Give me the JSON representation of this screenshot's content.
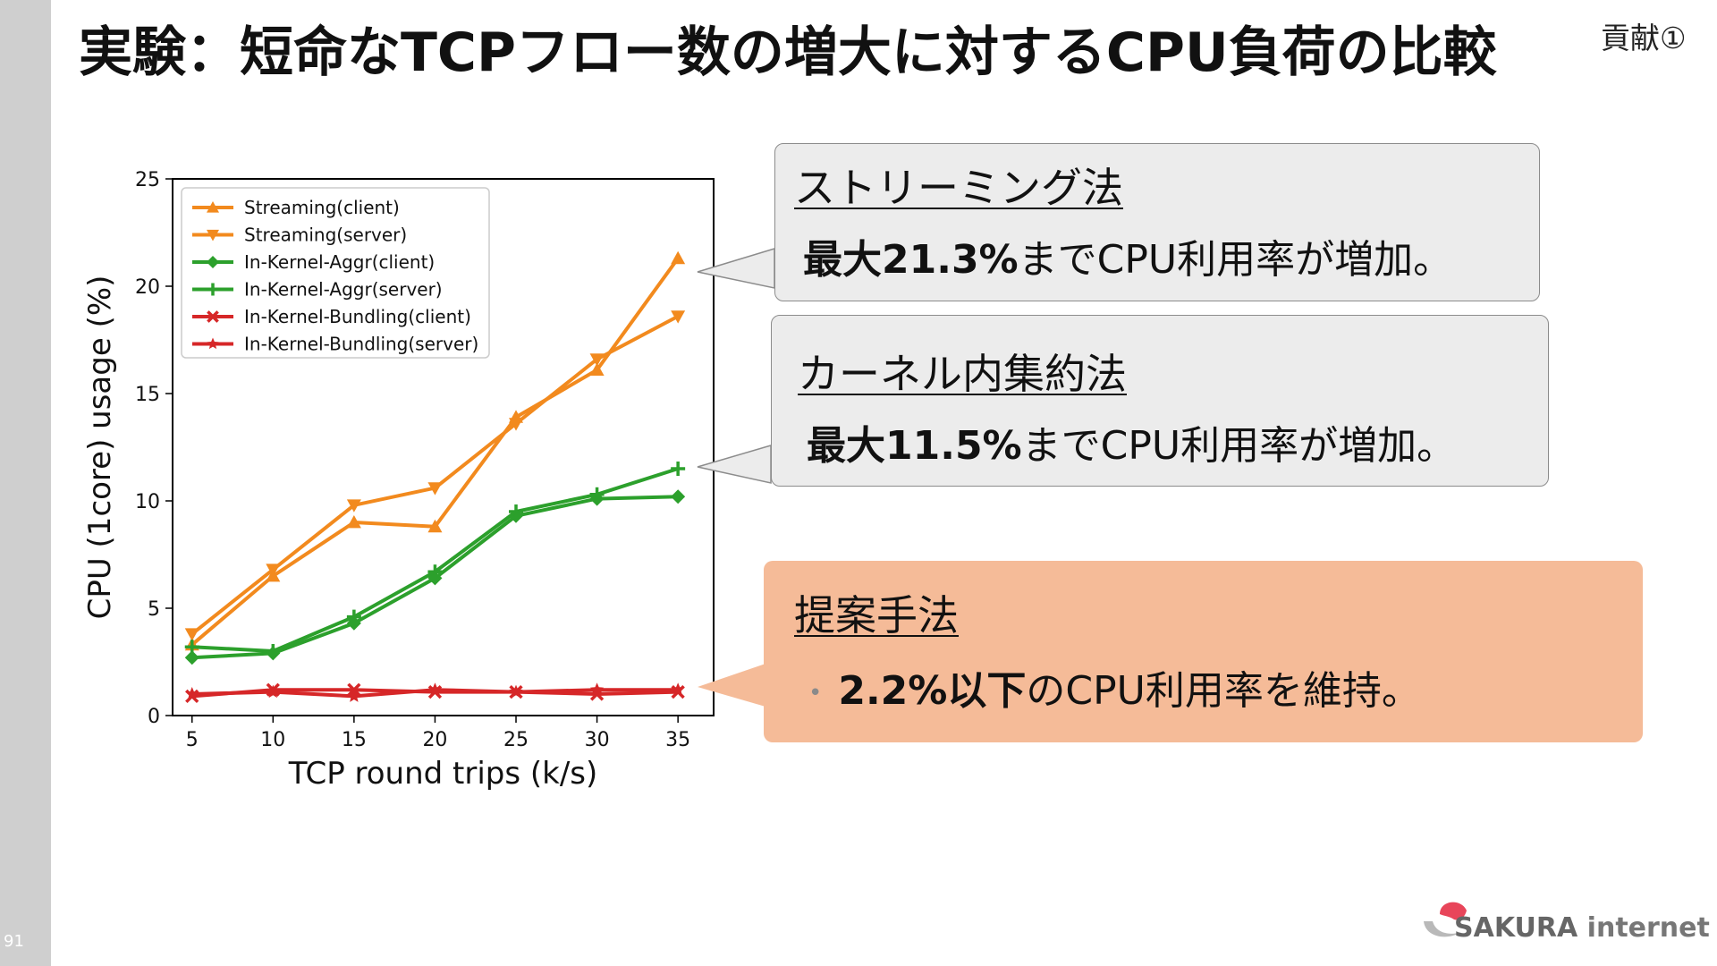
{
  "slide": {
    "page_number": "91",
    "title": "実験：短命なTCPフロー数の増大に対するCPU負荷の比較",
    "contribution_tag": "貢献①"
  },
  "callouts": [
    {
      "heading": "ストリーミング法",
      "prefix": "",
      "bold": "最大21.3%",
      "rest": "までCPU利用率が増加。"
    },
    {
      "heading": "カーネル内集約法",
      "prefix": "",
      "bold": "最大11.5%",
      "rest": "までCPU利用率が増加。"
    },
    {
      "heading": "提案手法",
      "prefix": "•",
      "bold": "2.2%以下",
      "rest": "のCPU利用率を維持。"
    }
  ],
  "logo": {
    "text_bold": "SAKURA",
    "text_rest": " internet",
    "colors": {
      "petal": "#e8455a",
      "swoosh": "#b9b9b9"
    }
  },
  "chart_data": {
    "type": "line",
    "xlabel": "TCP round trips (k/s)",
    "ylabel": "CPU (1core) usage (%)",
    "x": [
      5,
      10,
      15,
      20,
      25,
      30,
      35
    ],
    "xticks": [
      "5",
      "10",
      "15",
      "20",
      "25",
      "30",
      "35"
    ],
    "yticks": [
      "0",
      "5",
      "10",
      "15",
      "20",
      "25"
    ],
    "xlim": [
      3.8,
      37.2
    ],
    "ylim": [
      0,
      25
    ],
    "legend_position": "top-left",
    "series": [
      {
        "name": "Streaming(client)",
        "color": "#f28a1e",
        "marker": "triangle-up",
        "values": [
          3.3,
          6.5,
          9.0,
          8.8,
          13.9,
          16.1,
          21.3
        ]
      },
      {
        "name": "Streaming(server)",
        "color": "#f28a1e",
        "marker": "triangle-down",
        "values": [
          3.8,
          6.8,
          9.8,
          10.6,
          13.6,
          16.6,
          18.6
        ]
      },
      {
        "name": "In-Kernel-Aggr(client)",
        "color": "#2ca02c",
        "marker": "diamond",
        "values": [
          2.7,
          2.9,
          4.3,
          6.4,
          9.3,
          10.1,
          10.2
        ]
      },
      {
        "name": "In-Kernel-Aggr(server)",
        "color": "#2ca02c",
        "marker": "plus",
        "values": [
          3.2,
          3.0,
          4.6,
          6.7,
          9.5,
          10.3,
          11.5
        ]
      },
      {
        "name": "In-Kernel-Bundling(client)",
        "color": "#d62728",
        "marker": "x",
        "values": [
          0.9,
          1.2,
          1.2,
          1.1,
          1.1,
          1.0,
          1.1
        ]
      },
      {
        "name": "In-Kernel-Bundling(server)",
        "color": "#d62728",
        "marker": "star",
        "values": [
          1.0,
          1.1,
          0.9,
          1.2,
          1.1,
          1.2,
          1.2
        ]
      }
    ]
  }
}
